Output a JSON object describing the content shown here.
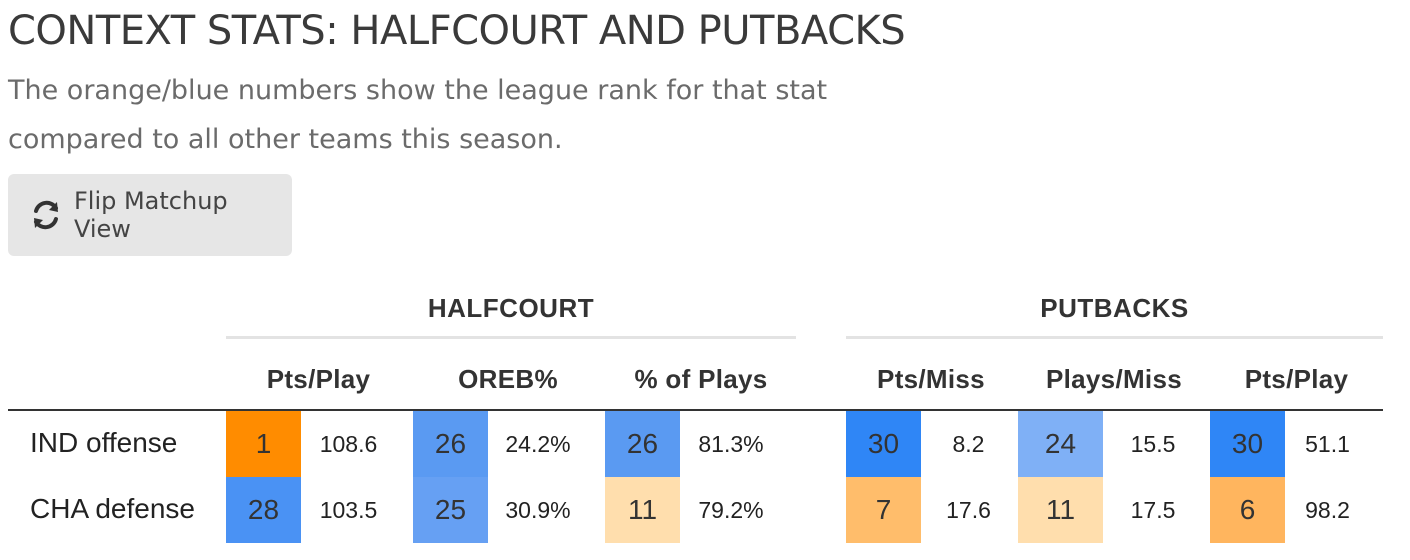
{
  "title": "CONTEXT STATS: HALFCOURT AND PUTBACKS",
  "subtitle": "The orange/blue numbers show the league rank for that stat compared to all other teams this season.",
  "flip_button": {
    "label": "Flip Matchup View",
    "icon": "refresh-icon"
  },
  "groups": [
    {
      "label": "HALFCOURT"
    },
    {
      "label": "PUTBACKS"
    }
  ],
  "columns": [
    {
      "label": "Pts/Play"
    },
    {
      "label": "OREB%"
    },
    {
      "label": "% of Plays"
    },
    {
      "label": "Pts/Miss"
    },
    {
      "label": "Plays/Miss"
    },
    {
      "label": "Pts/Play"
    }
  ],
  "rows": [
    {
      "label": "IND offense",
      "cells": [
        {
          "rank": "1",
          "value": "108.6",
          "color": "#ff8c00"
        },
        {
          "rank": "26",
          "value": "24.2%",
          "color": "#5a9af2"
        },
        {
          "rank": "26",
          "value": "81.3%",
          "color": "#5a9af2"
        },
        {
          "rank": "30",
          "value": "8.2",
          "color": "#2f86f6"
        },
        {
          "rank": "24",
          "value": "15.5",
          "color": "#7fb0f6"
        },
        {
          "rank": "30",
          "value": "51.1",
          "color": "#2f86f6"
        }
      ]
    },
    {
      "label": "CHA defense",
      "cells": [
        {
          "rank": "28",
          "value": "103.5",
          "color": "#4a92f4"
        },
        {
          "rank": "25",
          "value": "30.9%",
          "color": "#66a0f3"
        },
        {
          "rank": "11",
          "value": "79.2%",
          "color": "#ffdead"
        },
        {
          "rank": "7",
          "value": "17.6",
          "color": "#ffbd6b"
        },
        {
          "rank": "11",
          "value": "17.5",
          "color": "#ffdead"
        },
        {
          "rank": "6",
          "value": "98.2",
          "color": "#ffb55e"
        }
      ]
    }
  ]
}
